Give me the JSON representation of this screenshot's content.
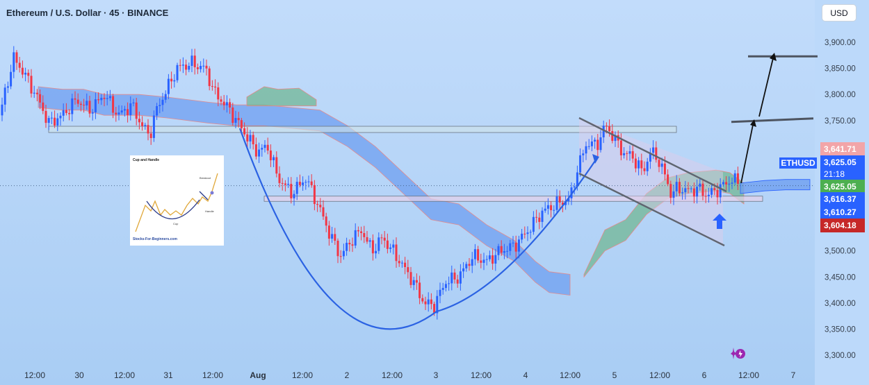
{
  "header": {
    "title": "Ethereum / U.S. Dollar · 45 · BINANCE",
    "currency_button": "USD"
  },
  "price_tags": {
    "ticker": "ETHUSD",
    "high_label": "3,641.71",
    "last_price": "3,625.05",
    "countdown": "21:18",
    "close_label": "3,625.05",
    "blue_label_1": "3,616.37",
    "blue_label_2": "3,610.27",
    "low_label": "3,604.18"
  },
  "inset": {
    "title": "Cup and Handle",
    "breakout": "Breakout",
    "cup": "Cup",
    "handle": "Handle",
    "site": "Stocks-For-Beginners.com"
  },
  "colors": {
    "up": "#2962ff",
    "down": "#f23645",
    "cloud_blue": "#6f9ff0",
    "cloud_green": "#71b794",
    "annotation_line": "#2b62e3"
  },
  "chart_data": {
    "type": "candlestick",
    "symbol": "ETHUSD",
    "interval": "45",
    "exchange": "BINANCE",
    "ylim": [
      3290,
      3935
    ],
    "y_ticks": [
      3900,
      3850,
      3800,
      3750,
      3700,
      3650,
      3600,
      3550,
      3500,
      3450,
      3400,
      3350,
      3300
    ],
    "y_tick_labels": [
      "3,900.00",
      "3,850.00",
      "3,800.00",
      "3,750.00",
      "3,700.00",
      "3,650.00",
      "3,600.00",
      "3,550.00",
      "3,500.00",
      "3,450.00",
      "3,400.00",
      "3,350.00",
      "3,300.00"
    ],
    "x_tick_labels": [
      "12:00",
      "30",
      "12:00",
      "31",
      "12:00",
      "Aug",
      "12:00",
      "2",
      "12:00",
      "3",
      "12:00",
      "4",
      "12:00",
      "5",
      "12:00",
      "6",
      "12:00",
      "7"
    ],
    "price_path": [
      [
        0,
        3760
      ],
      [
        10,
        3820
      ],
      [
        20,
        3870
      ],
      [
        35,
        3840
      ],
      [
        55,
        3790
      ],
      [
        70,
        3745
      ],
      [
        90,
        3760
      ],
      [
        110,
        3790
      ],
      [
        130,
        3770
      ],
      [
        150,
        3800
      ],
      [
        170,
        3760
      ],
      [
        190,
        3780
      ],
      [
        200,
        3750
      ],
      [
        215,
        3720
      ],
      [
        225,
        3770
      ],
      [
        240,
        3810
      ],
      [
        255,
        3850
      ],
      [
        275,
        3860
      ],
      [
        295,
        3850
      ],
      [
        310,
        3800
      ],
      [
        325,
        3780
      ],
      [
        340,
        3750
      ],
      [
        355,
        3720
      ],
      [
        370,
        3690
      ],
      [
        385,
        3700
      ],
      [
        400,
        3640
      ],
      [
        420,
        3610
      ],
      [
        440,
        3640
      ],
      [
        460,
        3580
      ],
      [
        475,
        3530
      ],
      [
        490,
        3490
      ],
      [
        505,
        3520
      ],
      [
        520,
        3540
      ],
      [
        535,
        3500
      ],
      [
        550,
        3525
      ],
      [
        565,
        3500
      ],
      [
        580,
        3470
      ],
      [
        595,
        3440
      ],
      [
        610,
        3400
      ],
      [
        625,
        3395
      ],
      [
        640,
        3440
      ],
      [
        660,
        3450
      ],
      [
        680,
        3490
      ],
      [
        700,
        3480
      ],
      [
        720,
        3500
      ],
      [
        740,
        3510
      ],
      [
        760,
        3540
      ],
      [
        780,
        3575
      ],
      [
        800,
        3590
      ],
      [
        820,
        3600
      ],
      [
        830,
        3655
      ],
      [
        845,
        3710
      ],
      [
        858,
        3700
      ],
      [
        870,
        3740
      ],
      [
        880,
        3725
      ],
      [
        895,
        3690
      ],
      [
        910,
        3680
      ],
      [
        925,
        3650
      ],
      [
        935,
        3690
      ],
      [
        945,
        3680
      ],
      [
        955,
        3650
      ],
      [
        965,
        3610
      ],
      [
        975,
        3620
      ],
      [
        990,
        3615
      ],
      [
        1005,
        3620
      ],
      [
        1015,
        3608
      ],
      [
        1025,
        3612
      ],
      [
        1035,
        3620
      ],
      [
        1045,
        3630
      ],
      [
        1055,
        3638
      ],
      [
        1065,
        3625
      ]
    ],
    "cloud_blue": [
      [
        55,
        3815
      ],
      [
        90,
        3810
      ],
      [
        120,
        3810
      ],
      [
        150,
        3800
      ],
      [
        200,
        3800
      ],
      [
        240,
        3795
      ],
      [
        300,
        3785
      ],
      [
        340,
        3780
      ],
      [
        380,
        3780
      ],
      [
        420,
        3775
      ],
      [
        460,
        3770
      ],
      [
        500,
        3740
      ],
      [
        540,
        3700
      ],
      [
        580,
        3650
      ],
      [
        620,
        3600
      ],
      [
        660,
        3590
      ],
      [
        700,
        3550
      ],
      [
        740,
        3520
      ],
      [
        770,
        3480
      ],
      [
        790,
        3460
      ],
      [
        820,
        3455
      ]
    ],
    "cloud_green": [
      [
        355,
        3795
      ],
      [
        380,
        3815
      ],
      [
        400,
        3810
      ],
      [
        430,
        3812
      ],
      [
        455,
        3790
      ],
      [
        840,
        3455
      ],
      [
        870,
        3540
      ],
      [
        900,
        3560
      ],
      [
        930,
        3610
      ],
      [
        960,
        3640
      ],
      [
        990,
        3650
      ],
      [
        1030,
        3655
      ],
      [
        1050,
        3650
      ],
      [
        1070,
        3630
      ]
    ],
    "resistance_zone": [
      3727,
      3739
    ],
    "support_zone": [
      3595,
      3605
    ],
    "target_lines": [
      3750,
      3873
    ],
    "current_price": 3625.05,
    "price_labels": [
      3641.71,
      3625.05,
      3625.05,
      3616.37,
      3610.27,
      3604.18
    ]
  }
}
